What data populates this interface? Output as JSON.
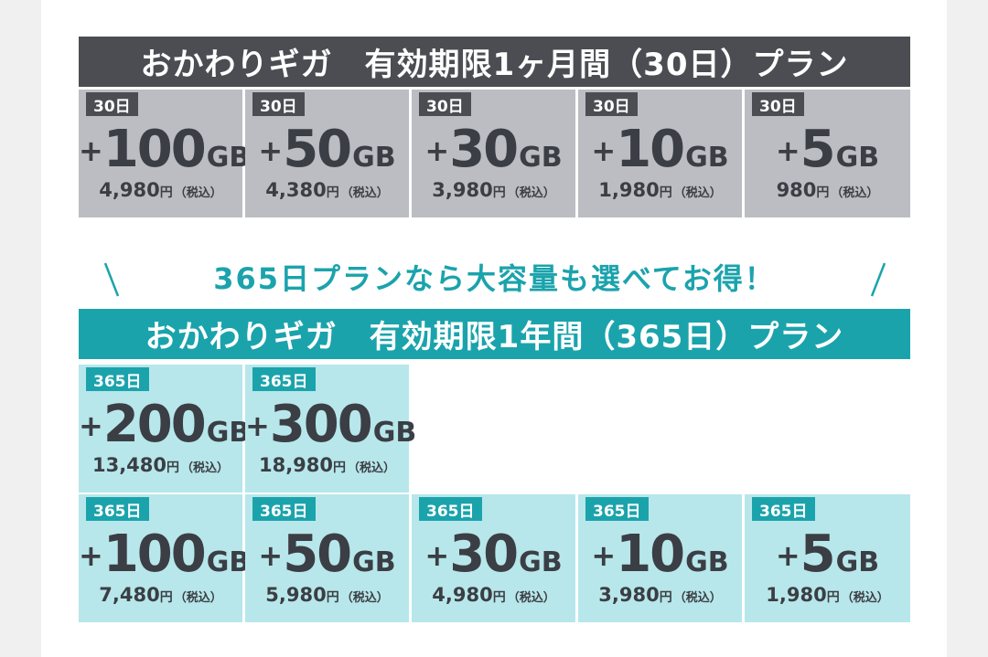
{
  "plan_30": {
    "title": "おかわりギガ　有効期限1ヶ月間（30日）プラン",
    "cards": [
      {
        "tag": "30日",
        "plus": "+",
        "amount": "100",
        "unit": "GB",
        "price": "4,980",
        "yen": "円",
        "tax": "（税込）"
      },
      {
        "tag": "30日",
        "plus": "+",
        "amount": "50",
        "unit": "GB",
        "price": "4,380",
        "yen": "円",
        "tax": "（税込）"
      },
      {
        "tag": "30日",
        "plus": "+",
        "amount": "30",
        "unit": "GB",
        "price": "3,980",
        "yen": "円",
        "tax": "（税込）"
      },
      {
        "tag": "30日",
        "plus": "+",
        "amount": "10",
        "unit": "GB",
        "price": "1,980",
        "yen": "円",
        "tax": "（税込）"
      },
      {
        "tag": "30日",
        "plus": "+",
        "amount": "5",
        "unit": "GB",
        "price": "980",
        "yen": "円",
        "tax": "（税込）"
      }
    ]
  },
  "promo": {
    "text": "365日プランなら大容量も選べてお得！",
    "left_mark": "＼",
    "right_mark": "／"
  },
  "plan_365": {
    "title": "おかわりギガ　有効期限1年間（365日）プラン",
    "cards_top": [
      {
        "tag": "365日",
        "plus": "+",
        "amount": "200",
        "unit": "GB",
        "price": "13,480",
        "yen": "円",
        "tax": "（税込）"
      },
      {
        "tag": "365日",
        "plus": "+",
        "amount": "300",
        "unit": "GB",
        "price": "18,980",
        "yen": "円",
        "tax": "（税込）"
      }
    ],
    "cards_bottom": [
      {
        "tag": "365日",
        "plus": "+",
        "amount": "100",
        "unit": "GB",
        "price": "7,480",
        "yen": "円",
        "tax": "（税込）"
      },
      {
        "tag": "365日",
        "plus": "+",
        "amount": "50",
        "unit": "GB",
        "price": "5,980",
        "yen": "円",
        "tax": "（税込）"
      },
      {
        "tag": "365日",
        "plus": "+",
        "amount": "30",
        "unit": "GB",
        "price": "4,980",
        "yen": "円",
        "tax": "（税込）"
      },
      {
        "tag": "365日",
        "plus": "+",
        "amount": "10",
        "unit": "GB",
        "price": "3,980",
        "yen": "円",
        "tax": "（税込）"
      },
      {
        "tag": "365日",
        "plus": "+",
        "amount": "5",
        "unit": "GB",
        "price": "1,980",
        "yen": "円",
        "tax": "（税込）"
      }
    ]
  },
  "colors": {
    "dark": "#4b4d52",
    "teal": "#1ba3ac",
    "gray_card": "#bcbdc3",
    "teal_card": "#b7e7ea",
    "text": "#3b3e45"
  }
}
